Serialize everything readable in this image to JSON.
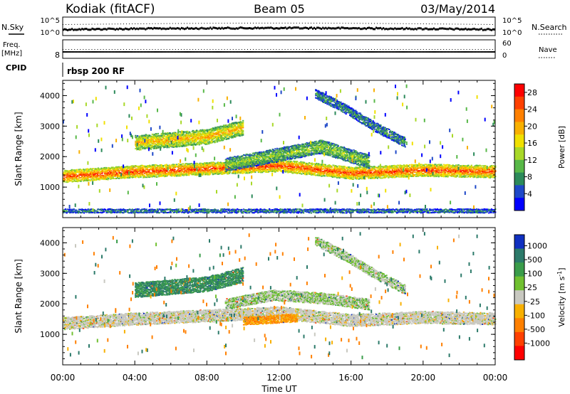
{
  "header": {
    "radar": "Kodiak (fitACF)",
    "beam": "Beam 05",
    "date": "03/May/2014"
  },
  "panels": {
    "nsky": {
      "left_label": "N.Sky",
      "right_label": "N.Search",
      "left_ticks": [
        "10^5",
        "10^0"
      ],
      "right_ticks": [
        "10^5",
        "10^0"
      ]
    },
    "freq": {
      "left_label_line1": "Freq.",
      "left_label_line2": "[MHz]",
      "right_label": "Nave",
      "left_ticks": [
        "8"
      ],
      "right_ticks": [
        "60",
        "0"
      ]
    },
    "cpid": {
      "label": "CPID",
      "value": "rbsp 200 RF"
    }
  },
  "chart_data": [
    {
      "type": "heatmap",
      "name": "power",
      "ylabel": "Slant Range [km]",
      "xlabel": "Time UT",
      "xlim": [
        "00:00",
        "24:00"
      ],
      "ylim": [
        0,
        4500
      ],
      "xticks": [
        "00:00",
        "04:00",
        "08:00",
        "12:00",
        "16:00",
        "20:00",
        "00:00"
      ],
      "yticks": [
        1000,
        2000,
        3000,
        4000
      ],
      "colorbar": {
        "label": "Power [dB]",
        "ticks": [
          "4",
          "8",
          "12",
          "16",
          "20",
          "24",
          "28"
        ],
        "range": [
          0,
          30
        ],
        "colors": [
          "#0000ff",
          "#1e48c8",
          "#2c8a5a",
          "#58b848",
          "#a8d828",
          "#f0e000",
          "#f8b000",
          "#ff8000",
          "#ff4000",
          "#ff0000"
        ]
      },
      "bands": [
        {
          "t": [
            0,
            24
          ],
          "range_start": [
            1150,
            1300,
            1400,
            1500,
            1250,
            1350,
            1300
          ],
          "width": 400,
          "power": 24
        },
        {
          "t": [
            4,
            10
          ],
          "range_start": [
            2200,
            2300,
            2400,
            2700
          ],
          "width": 500,
          "power": 18
        },
        {
          "t": [
            9,
            17
          ],
          "range_start": [
            1500,
            1800,
            2100,
            1600
          ],
          "width": 450,
          "power": 12
        },
        {
          "t": [
            14,
            19
          ],
          "range_start": [
            3900,
            3400,
            2800,
            2300
          ],
          "width": 300,
          "power": 8
        },
        {
          "t": [
            0,
            24
          ],
          "range_start": [
            150,
            150
          ],
          "width": 150,
          "power": 8
        }
      ]
    },
    {
      "type": "heatmap",
      "name": "velocity",
      "ylabel": "Slant Range [km]",
      "xlabel": "Time UT",
      "xlim": [
        "00:00",
        "24:00"
      ],
      "ylim": [
        0,
        4500
      ],
      "xticks": [
        "00:00",
        "04:00",
        "08:00",
        "12:00",
        "16:00",
        "20:00",
        "00:00"
      ],
      "yticks": [
        1000,
        2000,
        3000,
        4000
      ],
      "colorbar": {
        "label": "Velocity [m s^-1]",
        "ticks": [
          "1000",
          "500",
          "100",
          "25",
          "-25",
          "-100",
          "-500",
          "-1000"
        ],
        "colors": [
          "#1030c0",
          "#2c7a6a",
          "#3a9c4a",
          "#70c030",
          "#c8c8c0",
          "#f8b000",
          "#ff8000",
          "#ff4000",
          "#ff0000"
        ]
      },
      "bands": [
        {
          "t": [
            0,
            24
          ],
          "range_start": [
            1150,
            1300,
            1400,
            1500,
            1250,
            1350,
            1300
          ],
          "width": 400,
          "velocity": 0
        },
        {
          "t": [
            4,
            10
          ],
          "range_start": [
            2200,
            2300,
            2400,
            2700
          ],
          "width": 500,
          "velocity": 100
        },
        {
          "t": [
            10,
            13
          ],
          "range_start": [
            1300,
            1400
          ],
          "width": 250,
          "velocity": -100
        },
        {
          "t": [
            9,
            17
          ],
          "range_start": [
            1800,
            2100,
            2000,
            1800
          ],
          "width": 350,
          "velocity": 25
        },
        {
          "t": [
            14,
            19
          ],
          "range_start": [
            3900,
            3400,
            2800,
            2300
          ],
          "width": 300,
          "velocity": 25
        }
      ]
    }
  ]
}
